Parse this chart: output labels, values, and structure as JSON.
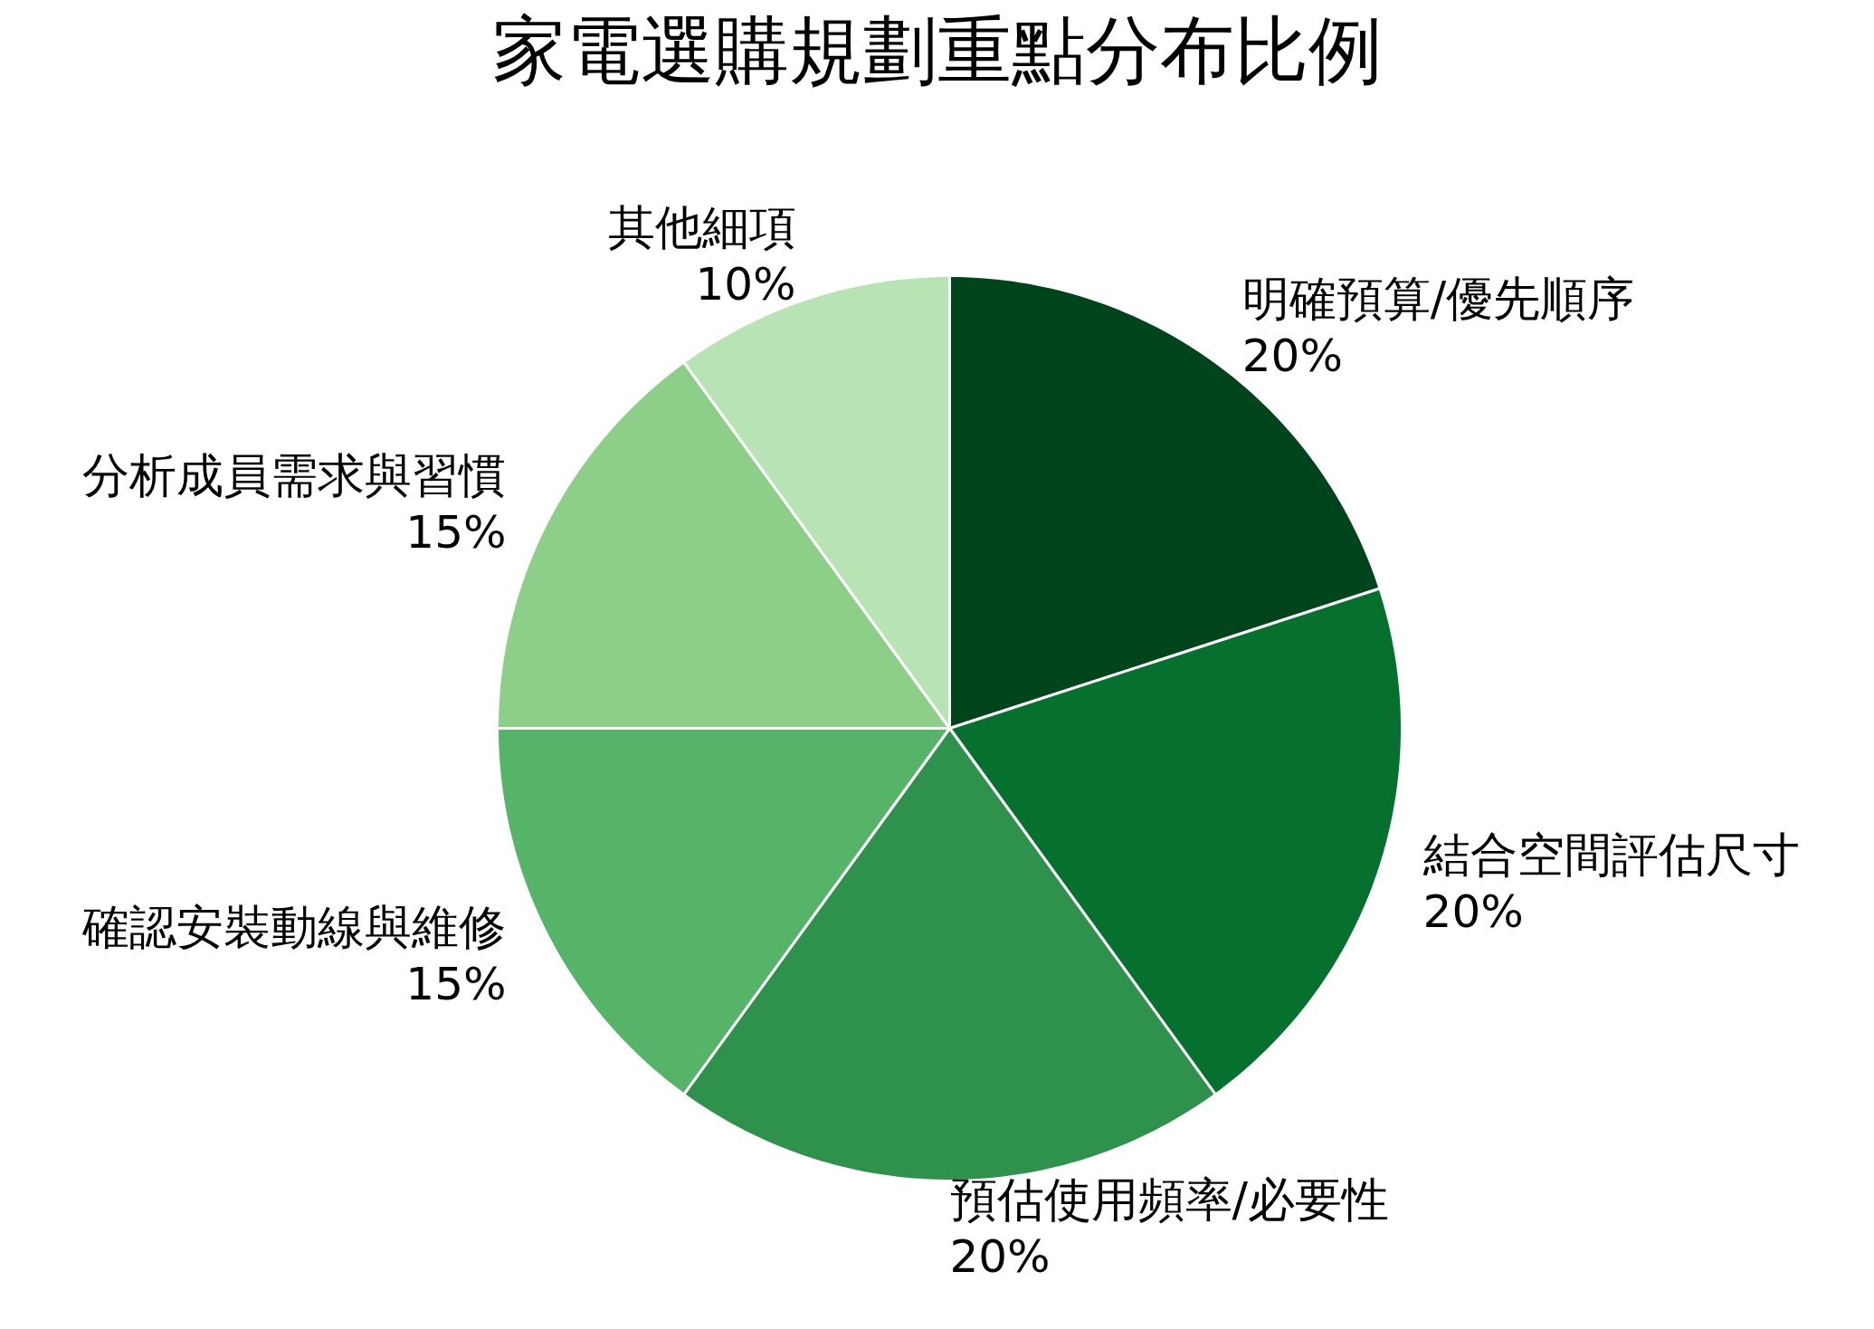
{
  "chart_data": {
    "type": "pie",
    "title": "家電選購規劃重點分布比例",
    "categories": [
      "明確預算/優先順序",
      "結合空間評估尺寸",
      "預估使用頻率/必要性",
      "確認安裝動線與維修",
      "分析成員需求與習慣",
      "其他細項"
    ],
    "values": [
      20,
      20,
      20,
      15,
      15,
      10
    ],
    "colors": [
      "#00441b",
      "#06702e",
      "#2e924c",
      "#56b468",
      "#8dce88",
      "#b8e3b4"
    ],
    "value_labels": [
      "20%",
      "20%",
      "20%",
      "15%",
      "15%",
      "10%"
    ]
  }
}
